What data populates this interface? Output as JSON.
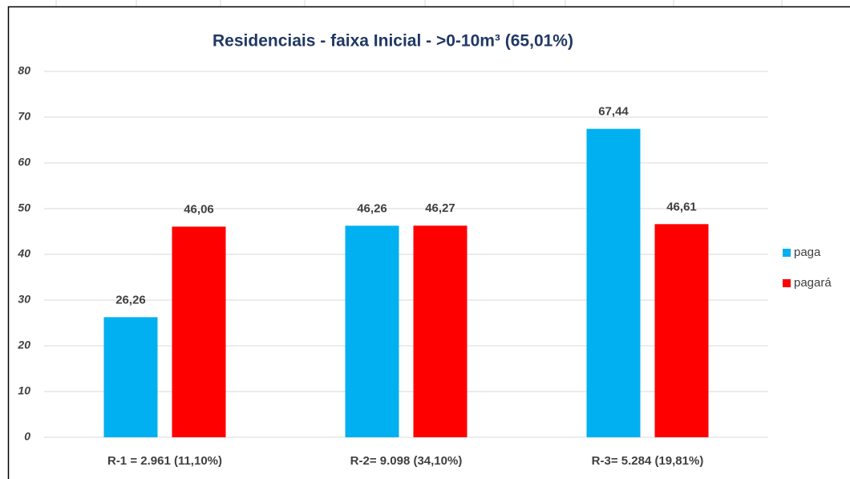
{
  "chart_data": {
    "type": "bar",
    "title": "Residenciais - faixa Inicial - >0-10m³ (65,01%)",
    "categories": [
      "R-1 = 2.961 (11,10%)",
      "R-2= 9.098 (34,10%)",
      "R-3= 5.284 (19,81%)"
    ],
    "series": [
      {
        "name": "paga",
        "color": "#00b0f0",
        "values": [
          26.26,
          46.26,
          67.44
        ],
        "value_labels": [
          "26,26",
          "46,26",
          "67,44"
        ]
      },
      {
        "name": "pagará",
        "color": "#ff0000",
        "values": [
          46.06,
          46.27,
          46.61
        ],
        "value_labels": [
          "46,06",
          "46,27",
          "46,61"
        ]
      }
    ],
    "ylim": [
      0,
      80
    ],
    "yticks": [
      0,
      10,
      20,
      30,
      40,
      50,
      60,
      70,
      80
    ],
    "grid": true,
    "legend": "right"
  }
}
